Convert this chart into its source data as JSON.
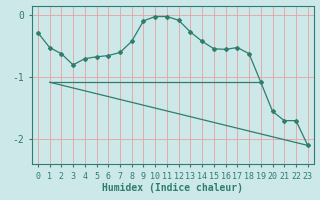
{
  "xlabel": "Humidex (Indice chaleur)",
  "bg_color": "#cde8e8",
  "grid_color": "#e8a0a0",
  "line_color": "#2e7d6e",
  "axis_color": "#2e7d6e",
  "xlim": [
    -0.5,
    23.5
  ],
  "ylim": [
    -2.4,
    0.15
  ],
  "yticks": [
    0,
    -1,
    -2
  ],
  "xticks": [
    0,
    1,
    2,
    3,
    4,
    5,
    6,
    7,
    8,
    9,
    10,
    11,
    12,
    13,
    14,
    15,
    16,
    17,
    18,
    19,
    20,
    21,
    22,
    23
  ],
  "line1_x": [
    0,
    1,
    2,
    3,
    4,
    5,
    6,
    7,
    8,
    9,
    10,
    11,
    12,
    13,
    14,
    15,
    16,
    17,
    18,
    19,
    20,
    21,
    22,
    23
  ],
  "line1_y": [
    -0.28,
    -0.52,
    -0.62,
    -0.8,
    -0.7,
    -0.67,
    -0.65,
    -0.6,
    -0.42,
    -0.09,
    -0.02,
    -0.02,
    -0.08,
    -0.27,
    -0.42,
    -0.54,
    -0.55,
    -0.52,
    -0.62,
    -1.08,
    -1.55,
    -1.7,
    -1.7,
    -2.1
  ],
  "line2_x": [
    1,
    19
  ],
  "line2_y": [
    -1.08,
    -1.08
  ],
  "line3_x": [
    1,
    23
  ],
  "line3_y": [
    -1.08,
    -2.1
  ],
  "xlabel_fontsize": 7,
  "tick_fontsize": 6
}
